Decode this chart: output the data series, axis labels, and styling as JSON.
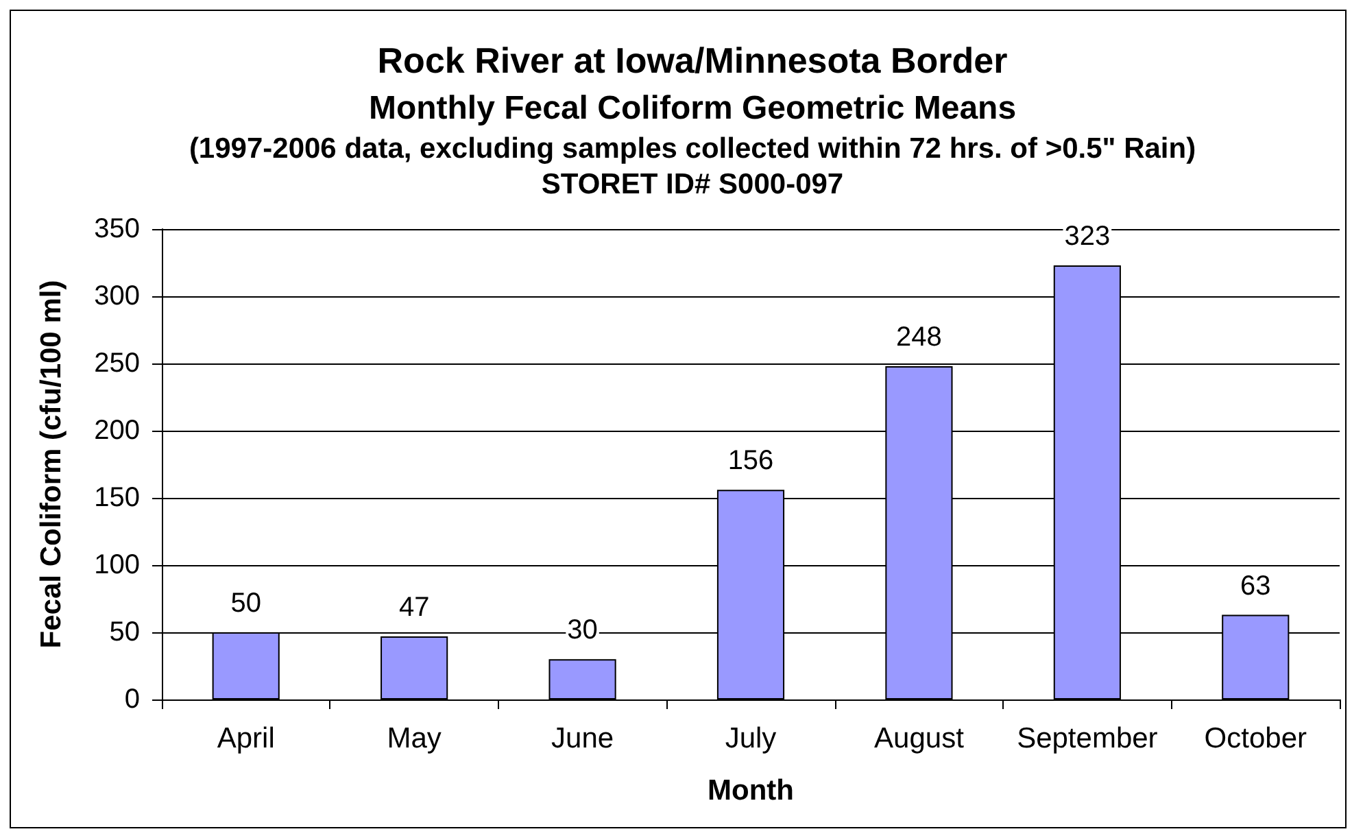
{
  "chart_data": {
    "type": "bar",
    "title": "Rock River at Iowa/Minnesota Border",
    "subtitle": "Monthly Fecal Coliform Geometric Means\n(1997-2006 data, excluding samples collected within 72 hrs. of >0.5\" Rain)\nSTORET ID# S000-097",
    "xlabel": "Month",
    "ylabel": "Fecal Coliform (cfu/100 ml)",
    "categories": [
      "April",
      "May",
      "June",
      "July",
      "August",
      "September",
      "October"
    ],
    "values": [
      50,
      47,
      30,
      156,
      248,
      323,
      63
    ],
    "color": "#9999ff",
    "ylim": [
      0,
      350
    ],
    "yticks": [
      0,
      50,
      100,
      150,
      200,
      250,
      300,
      350
    ],
    "grid": "y",
    "data_labels": true
  }
}
